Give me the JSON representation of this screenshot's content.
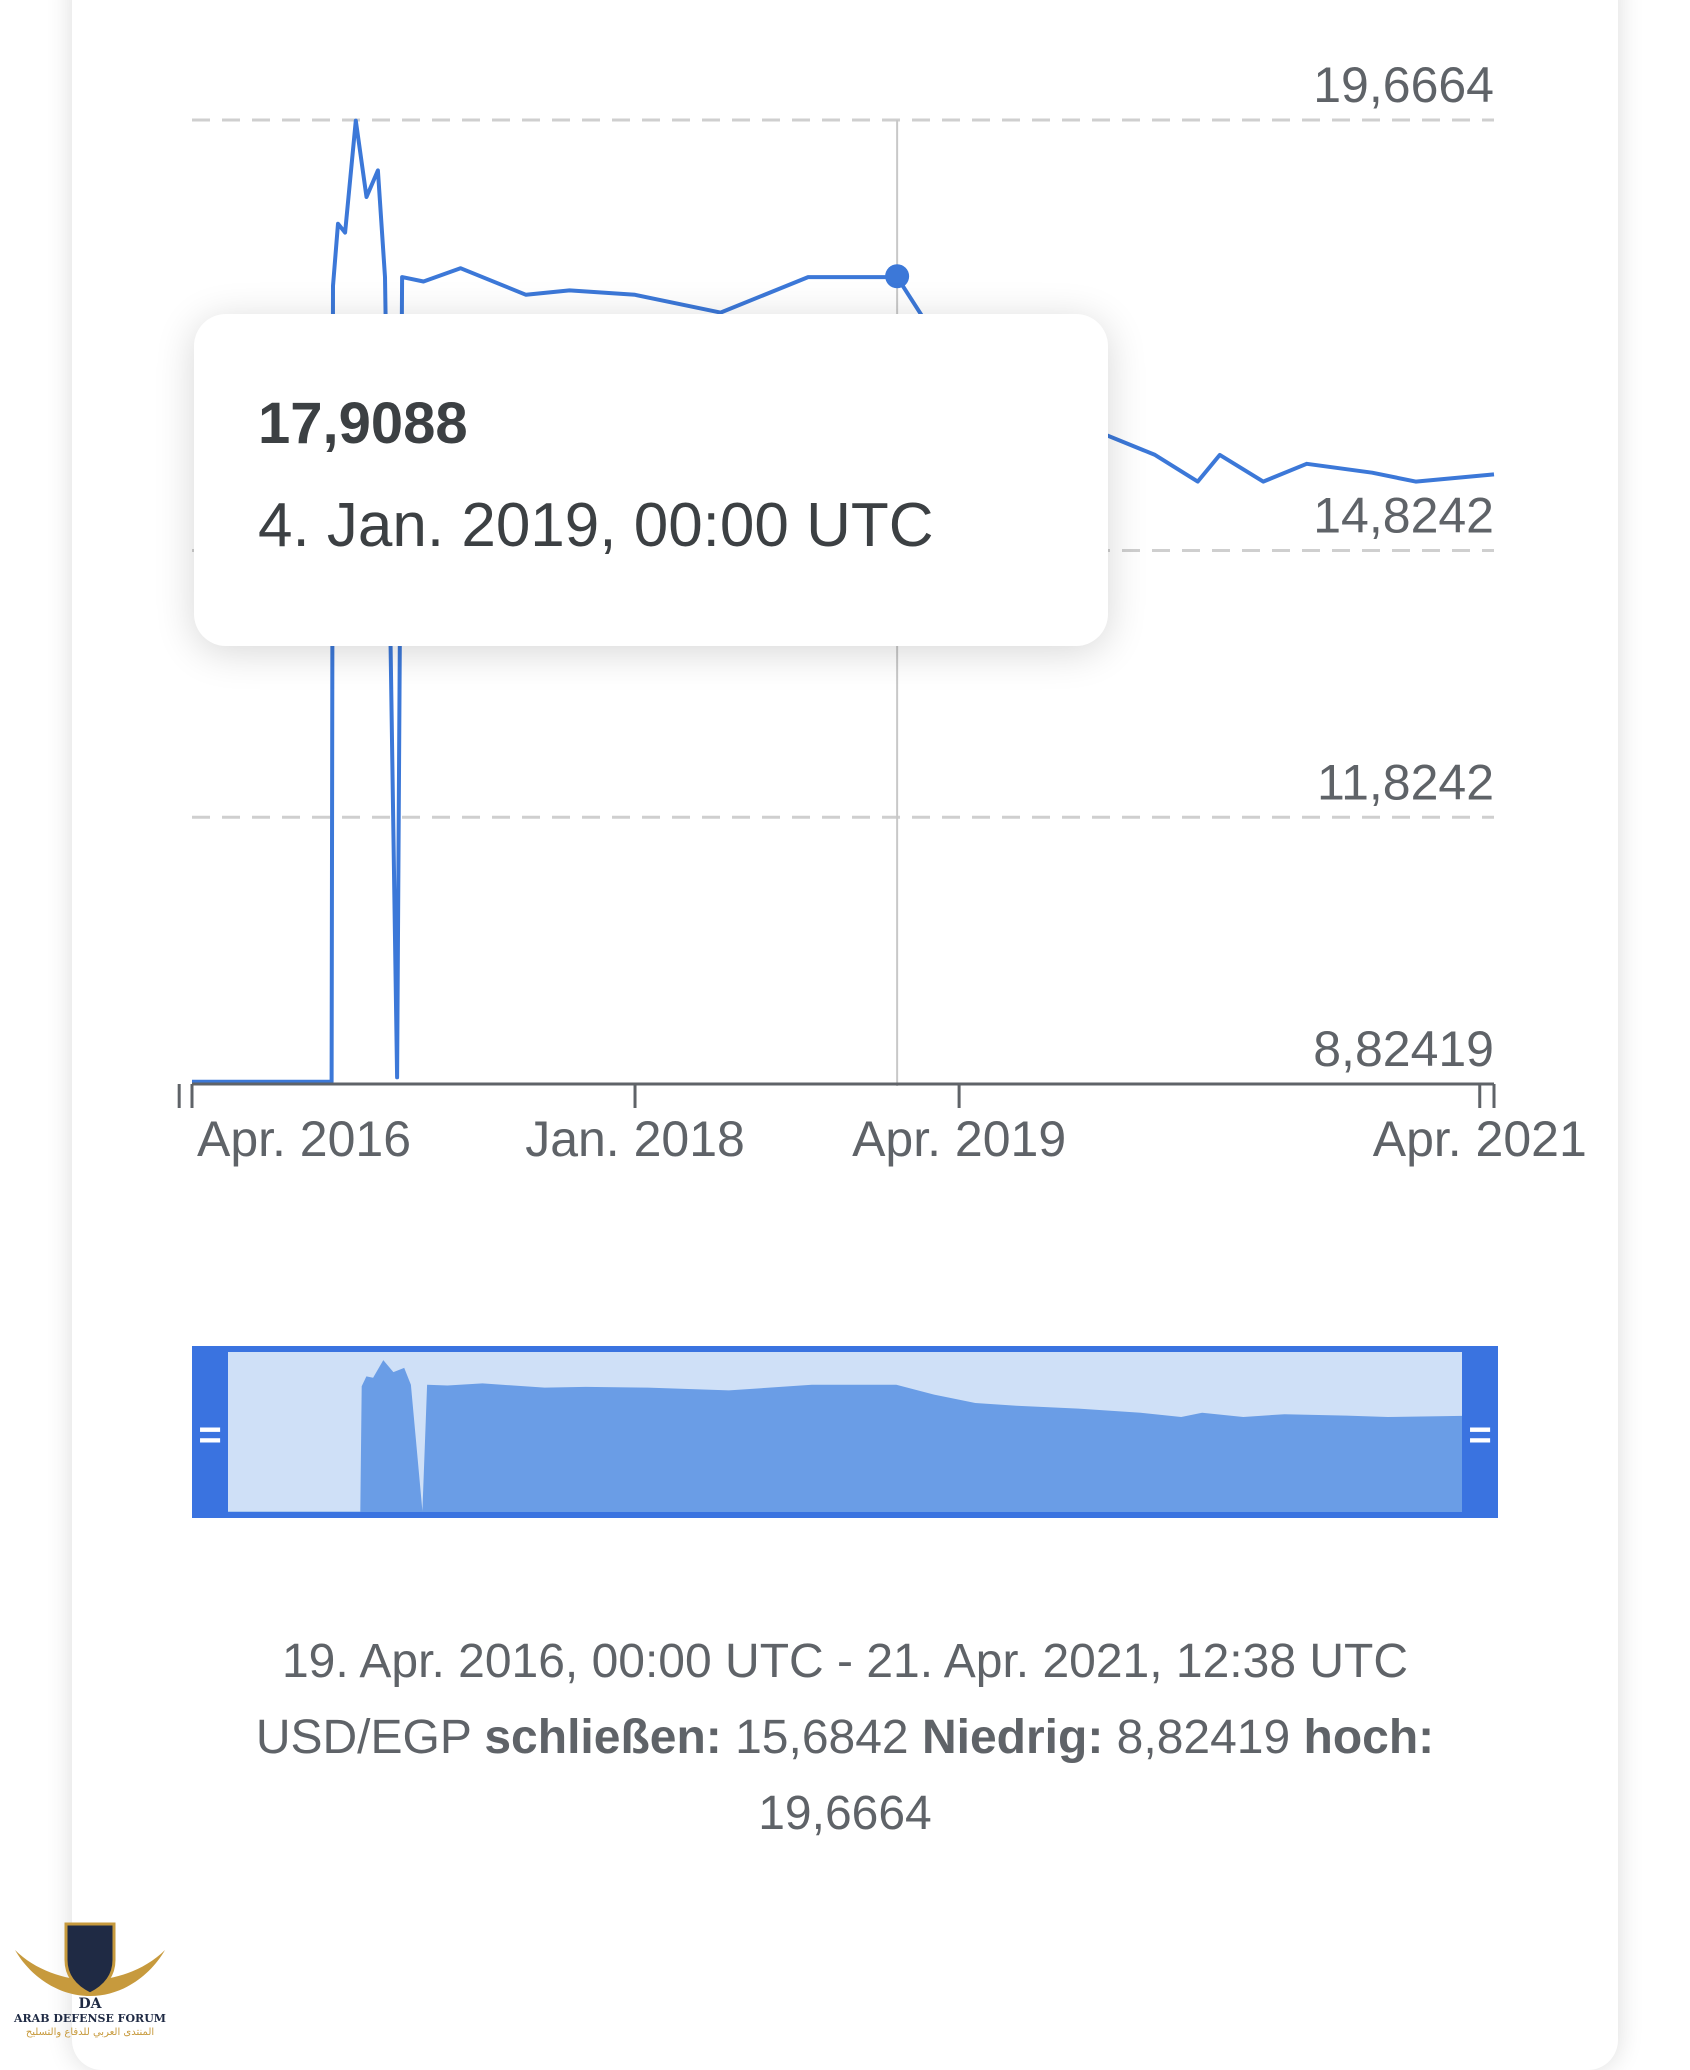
{
  "chart_data": {
    "type": "line",
    "y_ticks": [
      "19,6664",
      "14,8242",
      "11,8242",
      "8,82419"
    ],
    "y_tick_values": [
      19.6664,
      14.8242,
      11.8242,
      8.82419
    ],
    "ylim": [
      8.82419,
      19.6664
    ],
    "x_tick_labels": [
      "Apr. 2016",
      "Jan. 2018",
      "Apr. 2019",
      "Apr. 2021"
    ],
    "x_tick_dates": [
      "2016-04-01",
      "2018-01-01",
      "2019-04-01",
      "2021-04-01"
    ],
    "x_range": [
      "2016-04-19",
      "2021-04-21"
    ],
    "grid": true,
    "line_color": "#3c78d8",
    "series": [
      {
        "dates": [
          "2016-04-19",
          "2016-11-01",
          "2016-11-03",
          "2016-11-10",
          "2016-11-20",
          "2016-12-05",
          "2016-12-20",
          "2017-01-05",
          "2017-01-15",
          "2017-02-01",
          "2017-02-08",
          "2017-03-10",
          "2017-05-01",
          "2017-08-01",
          "2017-10-01",
          "2018-01-01",
          "2018-05-01",
          "2018-09-01",
          "2019-01-04",
          "2019-03-01",
          "2019-05-01",
          "2019-07-01",
          "2019-10-01",
          "2020-01-01",
          "2020-03-01",
          "2020-04-01",
          "2020-06-01",
          "2020-08-01",
          "2020-11-01",
          "2021-01-01",
          "2021-04-21"
        ],
        "values": [
          8.85,
          8.85,
          17.8,
          18.5,
          18.4,
          19.66,
          18.8,
          19.1,
          17.9,
          8.9,
          17.9,
          17.85,
          18.0,
          17.7,
          17.75,
          17.7,
          17.5,
          17.9,
          17.9,
          17.2,
          16.6,
          16.4,
          16.2,
          15.9,
          15.6,
          15.9,
          15.6,
          15.8,
          15.7,
          15.6,
          15.68
        ]
      }
    ],
    "highlight": {
      "date": "2019-01-04",
      "value": 17.9088
    }
  },
  "tooltip": {
    "value": "17,9088",
    "date": "4. Jan. 2019, 00:00 UTC"
  },
  "summary": {
    "range": "19. Apr. 2016, 00:00 UTC - 21. Apr. 2021, 12:38 UTC",
    "pair": "USD/EGP",
    "close_label": "schließen:",
    "close_value": "15,6842",
    "low_label": "Niedrig:",
    "low_value": "8,82419",
    "high_label": "hoch:",
    "high_value": "19,6664"
  },
  "navigator": {
    "fill_color": "#6a9de6",
    "window_color": "#cfe0f7",
    "handle_color": "#3a73e0",
    "handle_glyph": "="
  },
  "watermark": {
    "line1": "ARAB DEFENSE FORUM",
    "line2": "المنتدى العربي للدفاع والتسليح",
    "mark": "DA"
  }
}
